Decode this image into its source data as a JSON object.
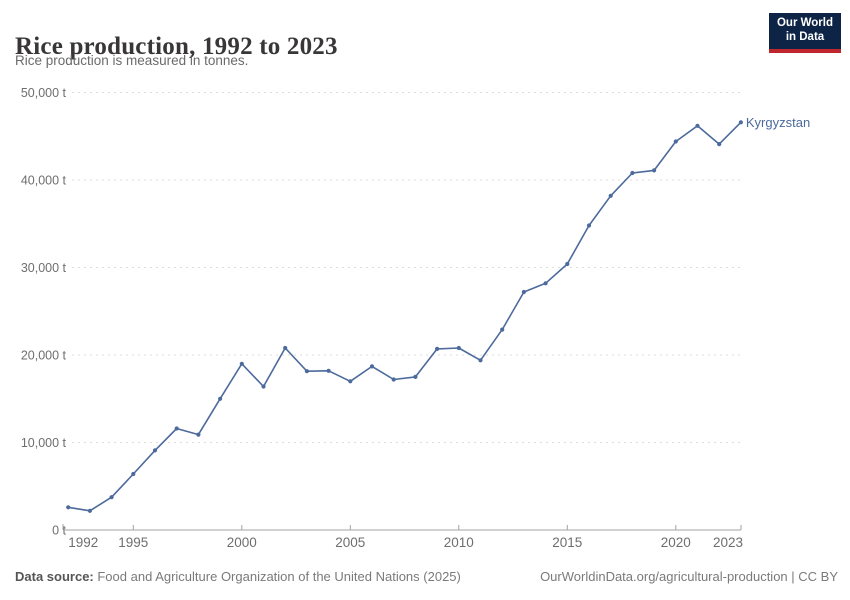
{
  "header": {
    "title": "Rice production, 1992 to 2023",
    "subtitle": "Rice production is measured in tonnes.",
    "logo": {
      "line1": "Our World",
      "line2": "in Data"
    }
  },
  "footer": {
    "source_label": "Data source:",
    "source_text": " Food and Agriculture Organization of the United Nations (2025)",
    "right_text": "OurWorldinData.org/agricultural-production | CC BY"
  },
  "colors": {
    "series": "#4C6A9C",
    "grid": "#dddddd",
    "axis": "#a3a3a3",
    "tick_text": "#6e6e6e",
    "title_text": "#383636",
    "logo_bg": "#0d2446",
    "logo_red": "#c0262d"
  },
  "chart_data": {
    "type": "line",
    "title": "Rice production, 1992 to 2023",
    "xlabel": "",
    "ylabel": "tonnes",
    "xlim": [
      1992,
      2023
    ],
    "ylim": [
      0,
      50000
    ],
    "grid": "horizontal-dashed",
    "legend": "end-of-line-label",
    "yticks": [
      {
        "value": 0,
        "label": "0 t"
      },
      {
        "value": 10000,
        "label": "10,000 t"
      },
      {
        "value": 20000,
        "label": "20,000 t"
      },
      {
        "value": 30000,
        "label": "30,000 t"
      },
      {
        "value": 40000,
        "label": "40,000 t"
      },
      {
        "value": 50000,
        "label": "50,000 t"
      }
    ],
    "xticks": [
      {
        "value": 1992,
        "label": "1992"
      },
      {
        "value": 1995,
        "label": "1995"
      },
      {
        "value": 2000,
        "label": "2000"
      },
      {
        "value": 2005,
        "label": "2005"
      },
      {
        "value": 2010,
        "label": "2010"
      },
      {
        "value": 2015,
        "label": "2015"
      },
      {
        "value": 2020,
        "label": "2020"
      },
      {
        "value": 2023,
        "label": "2023"
      }
    ],
    "series": [
      {
        "name": "Kyrgyzstan",
        "color": "#4C6A9C",
        "x": [
          1992,
          1993,
          1994,
          1995,
          1996,
          1997,
          1998,
          1999,
          2000,
          2001,
          2002,
          2003,
          2004,
          2005,
          2006,
          2007,
          2008,
          2009,
          2010,
          2011,
          2012,
          2013,
          2014,
          2015,
          2016,
          2017,
          2018,
          2019,
          2020,
          2021,
          2022,
          2023
        ],
        "values": [
          2600,
          2200,
          3750,
          6400,
          9100,
          11600,
          10900,
          15000,
          19000,
          16400,
          20800,
          18150,
          18200,
          17000,
          18700,
          17200,
          17500,
          20700,
          20800,
          19400,
          22900,
          27200,
          28200,
          30400,
          34800,
          38200,
          40800,
          41100,
          44400,
          46200,
          44100,
          46600
        ]
      }
    ]
  }
}
